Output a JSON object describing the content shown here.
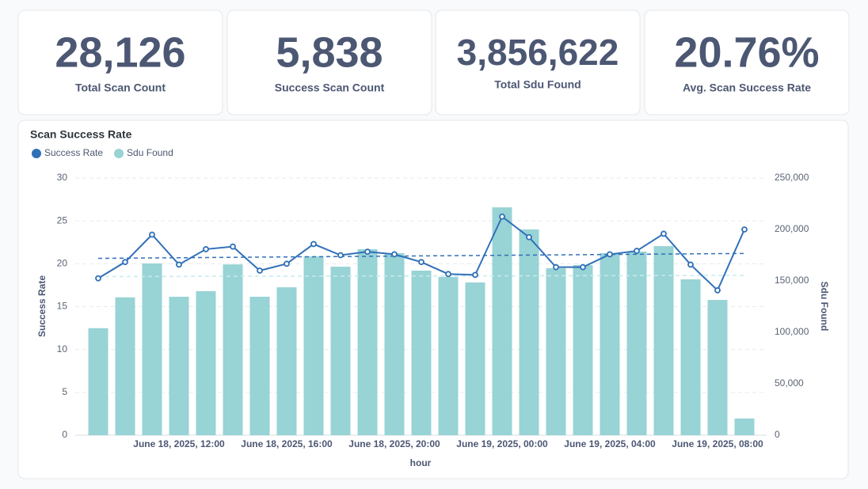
{
  "cards": [
    {
      "value": "28,126",
      "label": "Total Scan Count"
    },
    {
      "value": "5,838",
      "label": "Success Scan Count"
    },
    {
      "value": "3,856,622",
      "label": "Total Sdu Found"
    },
    {
      "value": "20.76%",
      "label": "Avg. Scan Success Rate"
    }
  ],
  "chart_data": {
    "type": "combo",
    "title": "Scan Success Rate",
    "x_label": "hour",
    "y_label": "Success Rate",
    "y2_label": "Sdu Found",
    "categories": [
      null,
      null,
      null,
      "June 18, 2025, 12:00",
      null,
      null,
      null,
      "June 18, 2025, 16:00",
      null,
      null,
      null,
      "June 18, 2025, 20:00",
      null,
      null,
      null,
      "June 19, 2025, 00:00",
      null,
      null,
      null,
      "June 19, 2025, 04:00",
      null,
      null,
      null,
      "June 19, 2025, 08:00",
      null
    ],
    "series": [
      {
        "name": "Success Rate",
        "type": "line",
        "color": "#3070b8",
        "trend": true,
        "values": [
          18.3,
          20.2,
          23.4,
          19.9,
          21.7,
          22.0,
          19.2,
          20.0,
          22.3,
          21.0,
          21.4,
          21.1,
          20.2,
          18.8,
          18.7,
          25.5,
          23.1,
          19.6,
          19.6,
          21.1,
          21.5,
          23.5,
          19.9,
          16.9,
          24.0
        ]
      },
      {
        "name": "Sdu Found",
        "type": "bar",
        "axis": "y2",
        "color": "#98d3d5",
        "trend": true,
        "values": [
          104000,
          134000,
          167000,
          134600,
          140000,
          166000,
          134600,
          143800,
          173800,
          163800,
          180800,
          177000,
          160000,
          153800,
          148500,
          221500,
          200000,
          162300,
          165400,
          177000,
          178500,
          183800,
          151500,
          131500,
          16200
        ]
      }
    ],
    "ylim": [
      0,
      30
    ],
    "yticks": [
      0,
      5,
      10,
      15,
      20,
      25,
      30
    ],
    "y2lim": [
      0,
      250000
    ],
    "y2ticks": [
      0,
      {
        "value": 50000,
        "label": "50,000"
      },
      {
        "value": 100000,
        "label": "100,000"
      },
      {
        "value": 150000,
        "label": "150,000"
      },
      {
        "value": 200000,
        "label": "200,000"
      },
      {
        "value": 250000,
        "label": "250,000"
      }
    ],
    "grid": true,
    "legend": "top-left"
  }
}
